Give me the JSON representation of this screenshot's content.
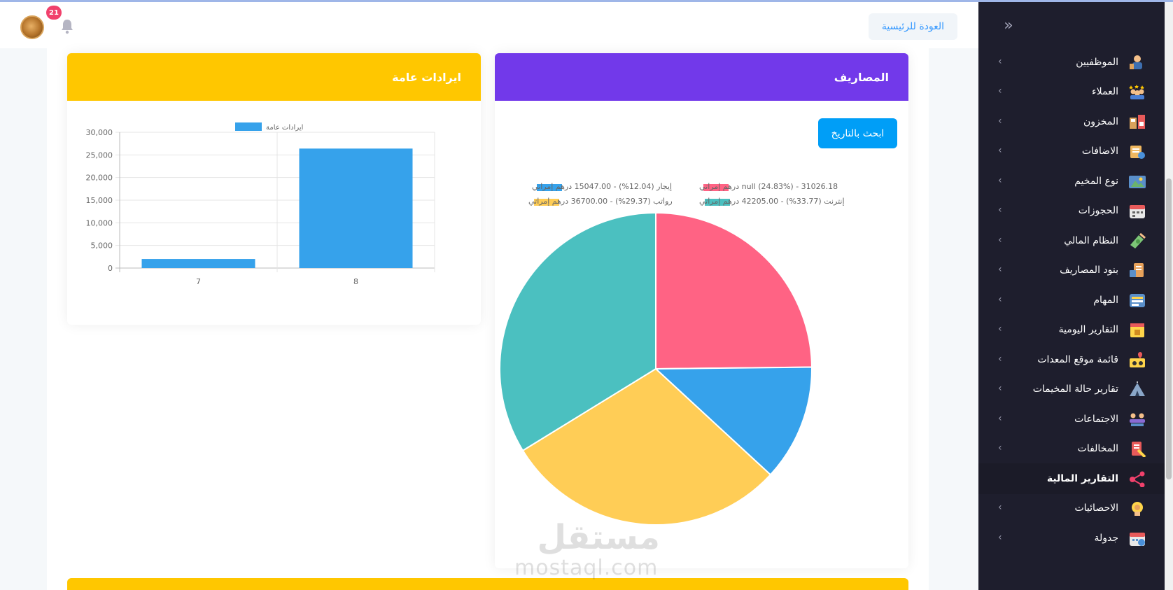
{
  "header": {
    "home_button": "العودة للرئيسية",
    "notification_count": "21"
  },
  "expenses_card": {
    "title": "المصاريف",
    "search_button": "ابحث بالتاريخ"
  },
  "revenue_card": {
    "title": "ايرادات عامة"
  },
  "watermark": {
    "arabic": "مستقل",
    "latin": "mostaql.com"
  },
  "sidebar": {
    "items": [
      {
        "label": "الموظفيين",
        "icon": "employees-icon",
        "active": false
      },
      {
        "label": "العملاء",
        "icon": "clients-icon",
        "active": false
      },
      {
        "label": "المخزون",
        "icon": "inventory-icon",
        "active": false
      },
      {
        "label": "الاضافات",
        "icon": "additions-icon",
        "active": false
      },
      {
        "label": "نوع المخيم",
        "icon": "camp-type-icon",
        "active": false
      },
      {
        "label": "الحجوزات",
        "icon": "calendar-icon",
        "active": false
      },
      {
        "label": "النظام المالي",
        "icon": "money-icon",
        "active": false
      },
      {
        "label": "بنود المصاريف",
        "icon": "expense-items-icon",
        "active": false
      },
      {
        "label": "المهام",
        "icon": "tasks-icon",
        "active": false
      },
      {
        "label": "التقارير اليومية",
        "icon": "daily-report-icon",
        "active": false
      },
      {
        "label": "قائمة موقع المعدات",
        "icon": "equipment-location-icon",
        "active": false
      },
      {
        "label": "تقارير حالة المخيمات",
        "icon": "tent-icon",
        "active": false
      },
      {
        "label": "الاجتماعات",
        "icon": "meetings-icon",
        "active": false
      },
      {
        "label": "المخالفات",
        "icon": "violations-icon",
        "active": false
      },
      {
        "label": "التقارير المالية",
        "icon": "share-icon",
        "active": true
      },
      {
        "label": "الاحصائيات",
        "icon": "statistics-icon",
        "active": false
      },
      {
        "label": "جدولة",
        "icon": "schedule-icon",
        "active": false
      }
    ]
  },
  "colors": {
    "purple": "#7239ea",
    "yellow": "#ffc700",
    "primary": "#009ef7",
    "sidebar": "#1e1e2d",
    "pie_red": "#ff6384",
    "pie_blue": "#36a2eb",
    "pie_yellow": "#ffcd56",
    "pie_teal": "#4bc0c0"
  },
  "chart_data": [
    {
      "type": "pie",
      "legend_position": "top",
      "slices": [
        {
          "label": "null (24.83%) - 31026.18 درهم إمراتي",
          "value": 31026.18,
          "percent": 24.83,
          "color": "#ff6384"
        },
        {
          "label": "إيجار (12.04%) - 15047.00 درهم إمراتي",
          "value": 15047.0,
          "percent": 12.04,
          "color": "#36a2eb"
        },
        {
          "label": "رواتب (29.37%) - 36700.00 درهم إمراتي",
          "value": 36700.0,
          "percent": 29.37,
          "color": "#ffcd56"
        },
        {
          "label": "إنترنت (33.77%) - 42205.00 درهم إمراتي",
          "value": 42205.0,
          "percent": 33.77,
          "color": "#4bc0c0"
        }
      ]
    },
    {
      "type": "bar",
      "categories": [
        "7",
        "8"
      ],
      "series": [
        {
          "name": "ايرادات عامة",
          "values": [
            2000,
            26400
          ],
          "color": "#36a2eb"
        }
      ],
      "ylim": [
        0,
        30000
      ],
      "yticks": [
        "0",
        "5,000",
        "10,000",
        "15,000",
        "20,000",
        "25,000",
        "30,000"
      ],
      "tick_values": [
        0,
        5000,
        10000,
        15000,
        20000,
        25000,
        30000
      ],
      "grid": true,
      "legend_position": "top"
    }
  ]
}
